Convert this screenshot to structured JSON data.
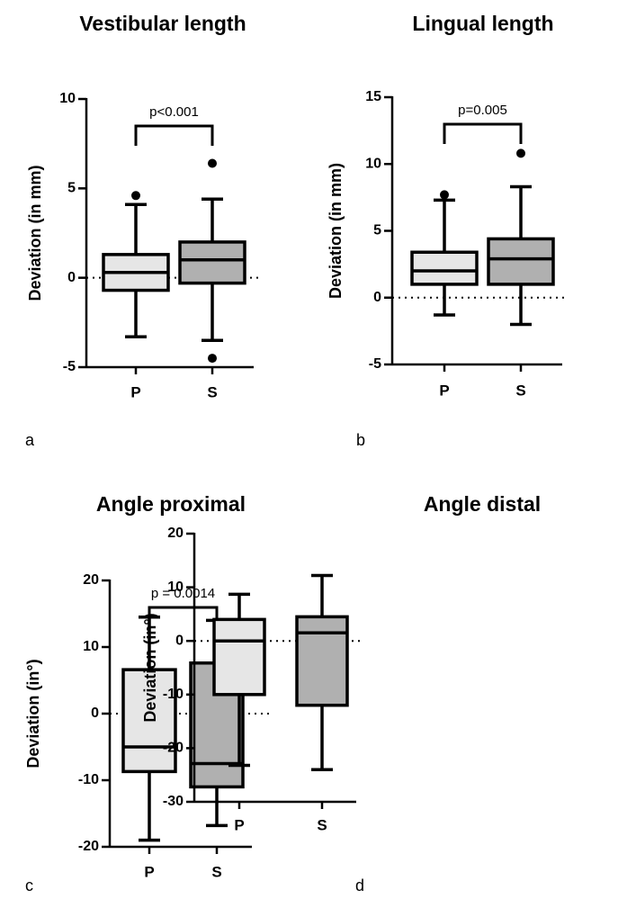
{
  "chart_data": [
    {
      "type": "box",
      "title": "Vestibular length",
      "panel_label": "a",
      "ylabel": "Deviation (in mm)",
      "categories": [
        "P",
        "S"
      ],
      "ylim": [
        -5,
        10
      ],
      "yticks": [
        -5,
        0,
        5,
        10
      ],
      "reference_y": 0,
      "significance_label": "p<0.001",
      "boxes": [
        {
          "color": "#e6e6e6",
          "low": -3.3,
          "q1": -0.7,
          "median": 0.3,
          "q3": 1.3,
          "high": 4.1,
          "outliers": [
            4.6
          ]
        },
        {
          "color": "#b0b0b0",
          "low": -3.5,
          "q1": -0.3,
          "median": 1.0,
          "q3": 2.0,
          "high": 4.4,
          "outliers": [
            6.4,
            -4.5
          ]
        }
      ]
    },
    {
      "type": "box",
      "title": "Lingual length",
      "panel_label": "b",
      "ylabel": "Deviation (in mm)",
      "categories": [
        "P",
        "S"
      ],
      "ylim": [
        -5,
        15
      ],
      "yticks": [
        -5,
        0,
        5,
        10,
        15
      ],
      "reference_y": 0,
      "significance_label": "p=0.005",
      "boxes": [
        {
          "color": "#e6e6e6",
          "low": -1.3,
          "q1": 1.0,
          "median": 2.0,
          "q3": 3.4,
          "high": 7.3,
          "outliers": [
            7.7
          ]
        },
        {
          "color": "#b0b0b0",
          "low": -2.0,
          "q1": 1.0,
          "median": 2.9,
          "q3": 4.4,
          "high": 8.3,
          "outliers": [
            10.8
          ]
        }
      ]
    },
    {
      "type": "box",
      "title": "Angle proximal",
      "panel_label": "c",
      "ylabel": "Deviation (in°)",
      "categories": [
        "P",
        "S"
      ],
      "ylim": [
        -20,
        20
      ],
      "yticks": [
        -20,
        -10,
        0,
        10,
        20
      ],
      "reference_y": 0,
      "significance_label": "p = 0.0014",
      "boxes": [
        {
          "color": "#e6e6e6",
          "low": -19,
          "q1": -8.7,
          "median": -5,
          "q3": 6.6,
          "high": 14.5,
          "outliers": []
        },
        {
          "color": "#b0b0b0",
          "low": -16.8,
          "q1": -11,
          "median": -7.5,
          "q3": 7.6,
          "high": 14,
          "outliers": []
        }
      ]
    },
    {
      "type": "box",
      "title": "Angle distal",
      "panel_label": "d",
      "ylabel": "Deviation (in°)",
      "categories": [
        "P",
        "S"
      ],
      "ylim": [
        -30,
        20
      ],
      "yticks": [
        -30,
        -20,
        -10,
        0,
        10,
        20
      ],
      "reference_y": 0,
      "boxes": [
        {
          "color": "#e6e6e6",
          "low": -23.2,
          "q1": -10,
          "median": 0,
          "q3": 4,
          "high": 8.7,
          "outliers": []
        },
        {
          "color": "#b0b0b0",
          "low": -24,
          "q1": -12,
          "median": 1.5,
          "q3": 4.5,
          "high": 12.2,
          "outliers": []
        }
      ]
    }
  ]
}
